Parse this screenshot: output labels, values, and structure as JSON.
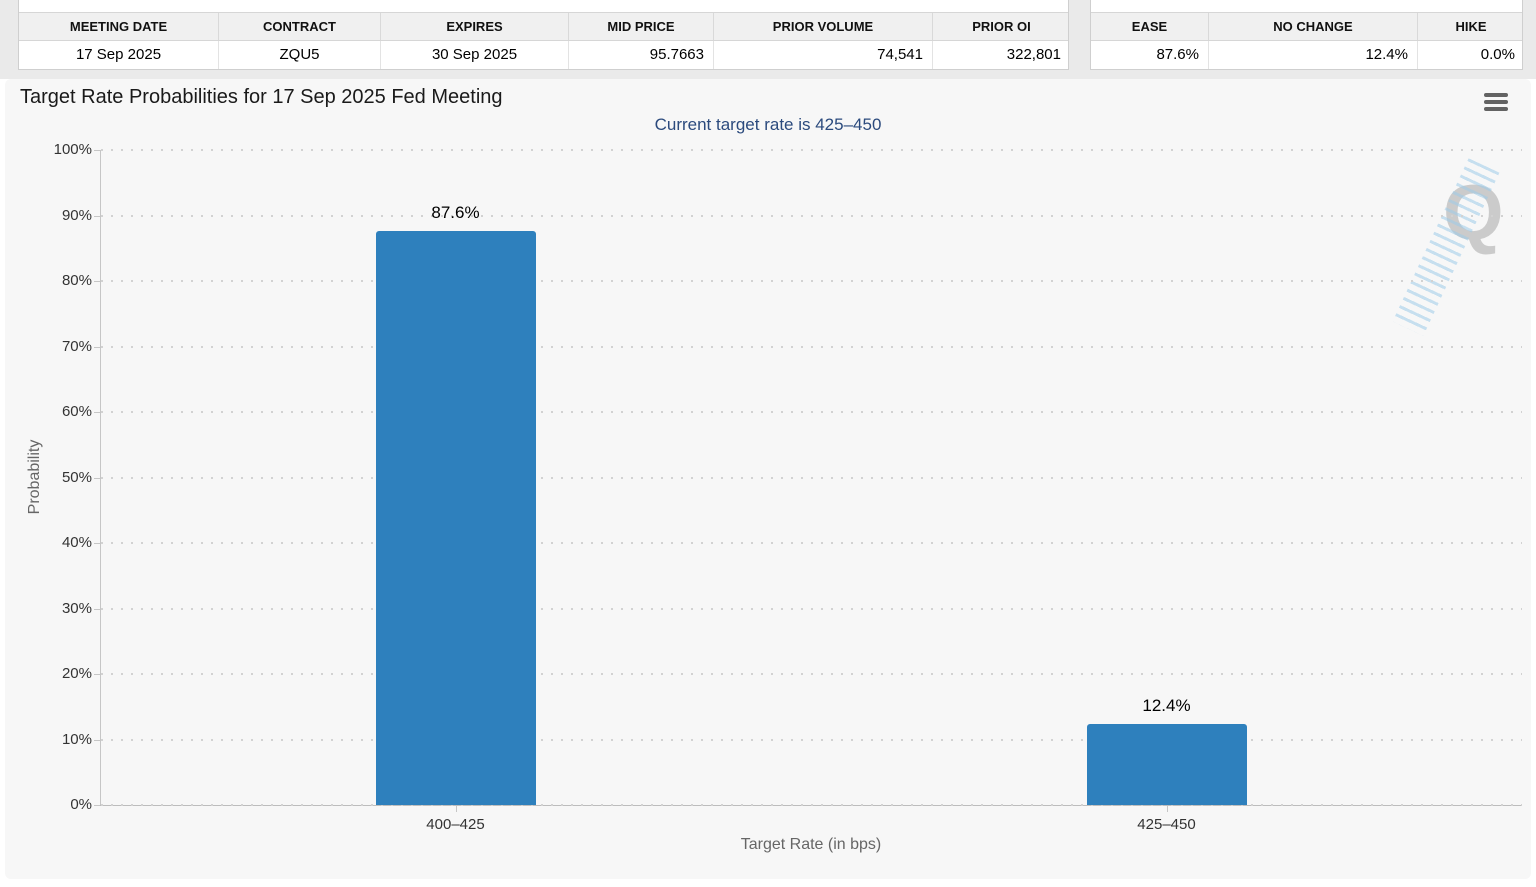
{
  "contract_table": {
    "headers": [
      "MEETING DATE",
      "CONTRACT",
      "EXPIRES",
      "MID PRICE",
      "PRIOR VOLUME",
      "PRIOR OI"
    ],
    "row": [
      "17 Sep 2025",
      "ZQU5",
      "30 Sep 2025",
      "95.7663",
      "74,541",
      "322,801"
    ]
  },
  "action_table": {
    "headers": [
      "EASE",
      "NO CHANGE",
      "HIKE"
    ],
    "row": [
      "87.6%",
      "12.4%",
      "0.0%"
    ]
  },
  "chart": {
    "title": "Target Rate Probabilities for 17 Sep 2025 Fed Meeting",
    "subtitle": "Current target rate is 425–450",
    "menu_icon": "hamburger-icon",
    "watermark_letter": "Q"
  },
  "chart_data": {
    "type": "bar",
    "title": "Target Rate Probabilities for 17 Sep 2025 Fed Meeting",
    "subtitle": "Current target rate is 425–450",
    "categories": [
      "400–425",
      "425–450"
    ],
    "values": [
      87.6,
      12.4
    ],
    "value_labels": [
      "87.6%",
      "12.4%"
    ],
    "xlabel": "Target Rate (in bps)",
    "ylabel": "Probability",
    "ylim": [
      0,
      100
    ],
    "ytick_step": 10,
    "ytick_suffix": "%",
    "grid": "dotted-horizontal",
    "legend": "none",
    "bar_color": "#2e80bd"
  },
  "colors": {
    "bar": "#2e80bd",
    "subtitle_text": "#2b4a7d",
    "panel_bg": "#f7f7f7",
    "grid_dot": "#d2d2d2",
    "axis_line": "#c6c6c6"
  }
}
